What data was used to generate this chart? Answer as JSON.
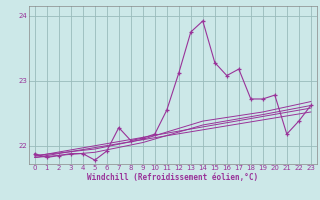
{
  "xlabel": "Windchill (Refroidissement éolien,°C)",
  "bg_color": "#cce8e8",
  "line_color": "#993399",
  "grid_color": "#99bbbb",
  "xlim": [
    -0.5,
    23.5
  ],
  "ylim": [
    21.72,
    24.15
  ],
  "yticks": [
    22,
    23,
    24
  ],
  "xticks": [
    0,
    1,
    2,
    3,
    4,
    5,
    6,
    7,
    8,
    9,
    10,
    11,
    12,
    13,
    14,
    15,
    16,
    17,
    18,
    19,
    20,
    21,
    22,
    23
  ],
  "series_main_x": [
    0,
    1,
    2,
    3,
    4,
    5,
    6,
    7,
    8,
    9,
    10,
    11,
    12,
    13,
    14,
    15,
    16,
    17,
    18,
    19,
    20,
    21,
    22,
    23
  ],
  "series_main_y": [
    21.88,
    21.82,
    21.85,
    21.88,
    21.88,
    21.78,
    21.92,
    22.28,
    22.08,
    22.12,
    22.18,
    22.55,
    23.12,
    23.75,
    23.92,
    23.28,
    23.08,
    23.18,
    22.72,
    22.72,
    22.78,
    22.18,
    22.38,
    22.62
  ],
  "trend_lines": [
    {
      "x": [
        0,
        23
      ],
      "y": [
        21.82,
        22.52
      ]
    },
    {
      "x": [
        0,
        23
      ],
      "y": [
        21.84,
        22.58
      ]
    },
    {
      "x": [
        0,
        5,
        9,
        14,
        19,
        23
      ],
      "y": [
        21.82,
        21.9,
        22.05,
        22.32,
        22.48,
        22.62
      ]
    },
    {
      "x": [
        0,
        5,
        9,
        14,
        19,
        23
      ],
      "y": [
        21.85,
        21.95,
        22.1,
        22.38,
        22.52,
        22.68
      ]
    }
  ]
}
